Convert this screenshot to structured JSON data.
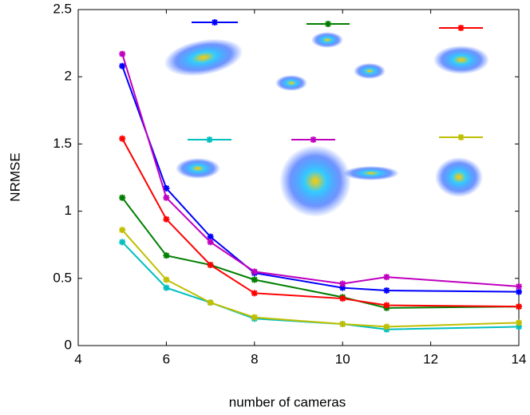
{
  "chart_data": {
    "type": "line",
    "x_label": "number of cameras",
    "y_label": "NRMSE",
    "x": [
      5,
      6,
      7,
      8,
      10,
      11,
      14
    ],
    "series": [
      {
        "color": "#0000ff",
        "values": [
          2.08,
          1.17,
          0.81,
          0.54,
          0.43,
          0.41,
          0.4
        ]
      },
      {
        "color": "#007f00",
        "values": [
          1.1,
          0.67,
          0.6,
          0.49,
          0.36,
          0.28,
          0.29
        ]
      },
      {
        "color": "#ff0000",
        "values": [
          1.54,
          0.94,
          0.6,
          0.39,
          0.35,
          0.3,
          0.29
        ]
      },
      {
        "color": "#00bfbf",
        "values": [
          0.77,
          0.43,
          0.32,
          0.2,
          0.16,
          0.12,
          0.14
        ]
      },
      {
        "color": "#bf00bf",
        "values": [
          2.17,
          1.1,
          0.77,
          0.55,
          0.46,
          0.51,
          0.44
        ]
      },
      {
        "color": "#bfbf00",
        "values": [
          0.86,
          0.49,
          0.32,
          0.21,
          0.16,
          0.14,
          0.17
        ]
      }
    ],
    "xlim": [
      4,
      14
    ],
    "xticks": [
      4,
      6,
      8,
      10,
      12,
      14
    ],
    "ylim": [
      0,
      2.5
    ],
    "yticks": [
      0,
      0.5,
      1,
      1.5,
      2,
      2.5
    ],
    "grid": false
  }
}
